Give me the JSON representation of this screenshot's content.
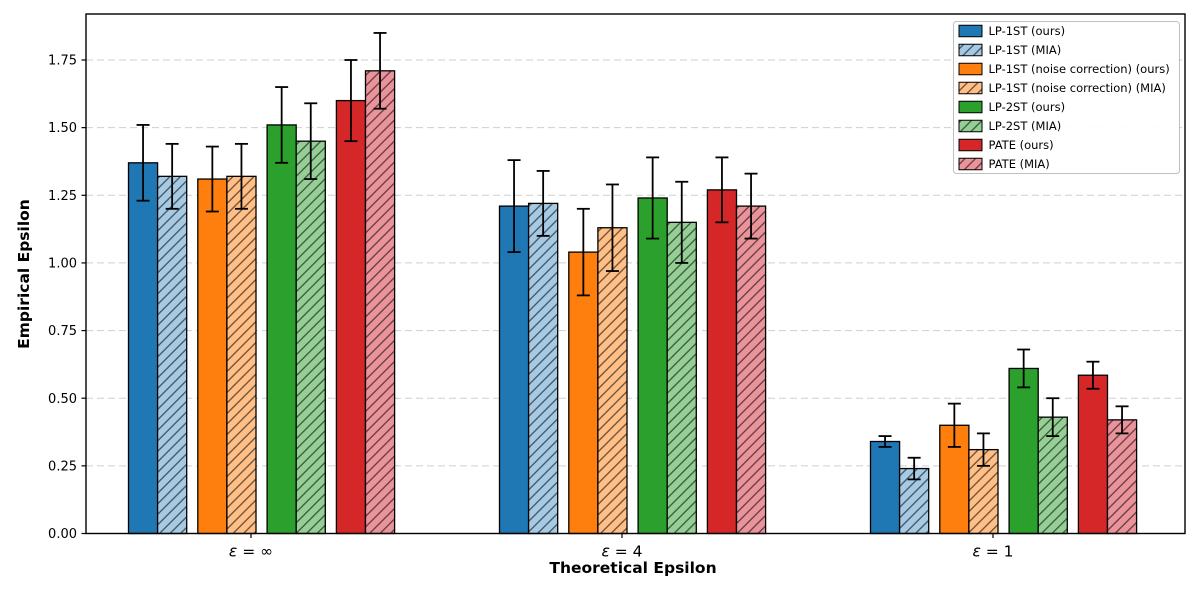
{
  "chart_data": {
    "type": "bar",
    "title": "",
    "xlabel": "Theoretical Epsilon",
    "ylabel": "Empirical Epsilon",
    "categories": [
      "ε = ∞",
      "ε = 4",
      "ε = 1"
    ],
    "ylim": [
      0,
      1.92
    ],
    "yticks": [
      0.0,
      0.25,
      0.5,
      0.75,
      1.0,
      1.25,
      1.5,
      1.75
    ],
    "grid": "horizontal-dashed",
    "grid_color": "#cfcfcf",
    "legend_position": "upper-right",
    "error_bar_color": "#000000",
    "bar_edge_color": "#000000",
    "hatch_pattern": "/",
    "series": [
      {
        "name": "LP-1ST (ours)",
        "color": "#1f77b4",
        "hatch": false,
        "values": [
          1.37,
          1.21,
          0.34
        ],
        "errors": [
          0.14,
          0.17,
          0.02
        ]
      },
      {
        "name": "LP-1ST (MIA)",
        "color": "#a6cae3",
        "hatch": true,
        "values": [
          1.32,
          1.22,
          0.24
        ],
        "errors": [
          0.12,
          0.12,
          0.04
        ]
      },
      {
        "name": "LP-1ST (noise correction) (ours)",
        "color": "#ff7f0e",
        "hatch": false,
        "values": [
          1.31,
          1.04,
          0.4
        ],
        "errors": [
          0.12,
          0.16,
          0.08
        ]
      },
      {
        "name": "LP-1ST (noise correction) (MIA)",
        "color": "#ffbf86",
        "hatch": true,
        "values": [
          1.32,
          1.13,
          0.31
        ],
        "errors": [
          0.12,
          0.16,
          0.06
        ]
      },
      {
        "name": "LP-2ST (ours)",
        "color": "#2ca02c",
        "hatch": false,
        "values": [
          1.51,
          1.24,
          0.61
        ],
        "errors": [
          0.14,
          0.15,
          0.07
        ]
      },
      {
        "name": "LP-2ST (MIA)",
        "color": "#95cf95",
        "hatch": true,
        "values": [
          1.45,
          1.15,
          0.43
        ],
        "errors": [
          0.14,
          0.15,
          0.07
        ]
      },
      {
        "name": "PATE (ours)",
        "color": "#d62728",
        "hatch": false,
        "values": [
          1.6,
          1.27,
          0.585
        ],
        "errors": [
          0.15,
          0.12,
          0.05
        ]
      },
      {
        "name": "PATE (MIA)",
        "color": "#ea939b",
        "hatch": true,
        "values": [
          1.71,
          1.21,
          0.42
        ],
        "errors": [
          0.14,
          0.12,
          0.05
        ]
      }
    ]
  }
}
